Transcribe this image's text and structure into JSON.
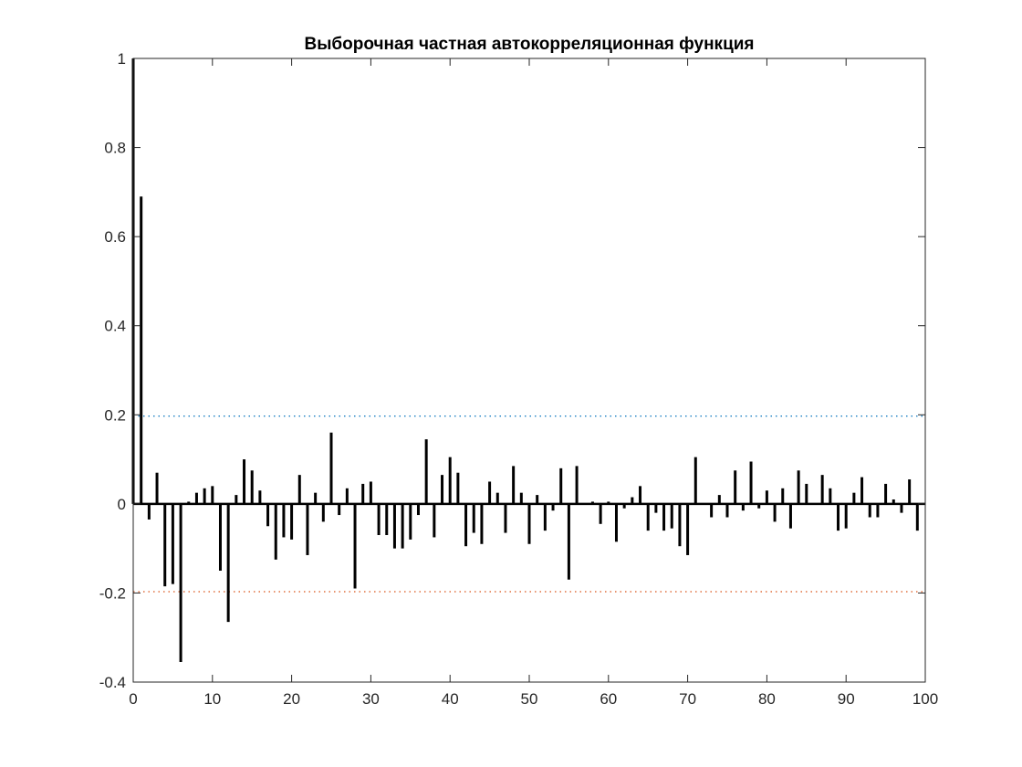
{
  "chart_data": {
    "type": "bar",
    "title": "Выборочная частная автокорреляционная функция",
    "xlabel": "",
    "ylabel": "",
    "xlim": [
      0,
      100
    ],
    "ylim": [
      -0.4,
      1
    ],
    "xticks": [
      "0",
      "10",
      "20",
      "30",
      "40",
      "50",
      "60",
      "70",
      "80",
      "90",
      "100"
    ],
    "yticks": [
      "-0.4",
      "-0.2",
      "0",
      "0.2",
      "0.4",
      "0.6",
      "0.8",
      "1"
    ],
    "grid": false,
    "stem_color": "#000000",
    "lags": [
      0,
      1,
      2,
      3,
      4,
      5,
      6,
      7,
      8,
      9,
      10,
      11,
      12,
      13,
      14,
      15,
      16,
      17,
      18,
      19,
      20,
      21,
      22,
      23,
      24,
      25,
      26,
      27,
      28,
      29,
      30,
      31,
      32,
      33,
      34,
      35,
      36,
      37,
      38,
      39,
      40,
      41,
      42,
      43,
      44,
      45,
      46,
      47,
      48,
      49,
      50,
      51,
      52,
      53,
      54,
      55,
      56,
      57,
      58,
      59,
      60,
      61,
      62,
      63,
      64,
      65,
      66,
      67,
      68,
      69,
      70,
      71,
      72,
      73,
      74,
      75,
      76,
      77,
      78,
      79,
      80,
      81,
      82,
      83,
      84,
      85,
      86,
      87,
      88,
      89,
      90,
      91,
      92,
      93,
      94,
      95,
      96,
      97,
      98,
      99
    ],
    "values": [
      1.0,
      0.69,
      -0.035,
      0.07,
      -0.185,
      -0.18,
      -0.355,
      0.005,
      0.025,
      0.035,
      0.04,
      -0.15,
      -0.265,
      0.02,
      0.1,
      0.075,
      0.03,
      -0.05,
      -0.125,
      -0.075,
      -0.08,
      0.065,
      -0.115,
      0.025,
      -0.04,
      0.16,
      -0.025,
      0.035,
      -0.19,
      0.045,
      0.05,
      -0.07,
      -0.07,
      -0.1,
      -0.1,
      -0.08,
      -0.025,
      0.145,
      -0.075,
      0.065,
      0.105,
      0.07,
      -0.095,
      -0.065,
      -0.09,
      0.05,
      0.025,
      -0.065,
      0.085,
      0.025,
      -0.09,
      0.02,
      -0.06,
      -0.015,
      0.08,
      -0.17,
      0.085,
      0.0,
      0.005,
      -0.045,
      0.005,
      -0.085,
      -0.01,
      0.015,
      0.04,
      -0.06,
      -0.02,
      -0.06,
      -0.055,
      -0.095,
      -0.115,
      0.105,
      0.0,
      -0.03,
      0.02,
      -0.03,
      0.075,
      -0.015,
      0.095,
      -0.01,
      0.03,
      -0.04,
      0.035,
      -0.055,
      0.075,
      0.045,
      0.0,
      0.065,
      0.035,
      -0.06,
      -0.055,
      0.025,
      0.06,
      -0.03,
      -0.03,
      0.045,
      0.01,
      -0.02,
      0.055,
      -0.06
    ],
    "bounds": [
      {
        "value": 0.197,
        "color": "#0072BD"
      },
      {
        "value": -0.197,
        "color": "#D95319"
      }
    ]
  }
}
